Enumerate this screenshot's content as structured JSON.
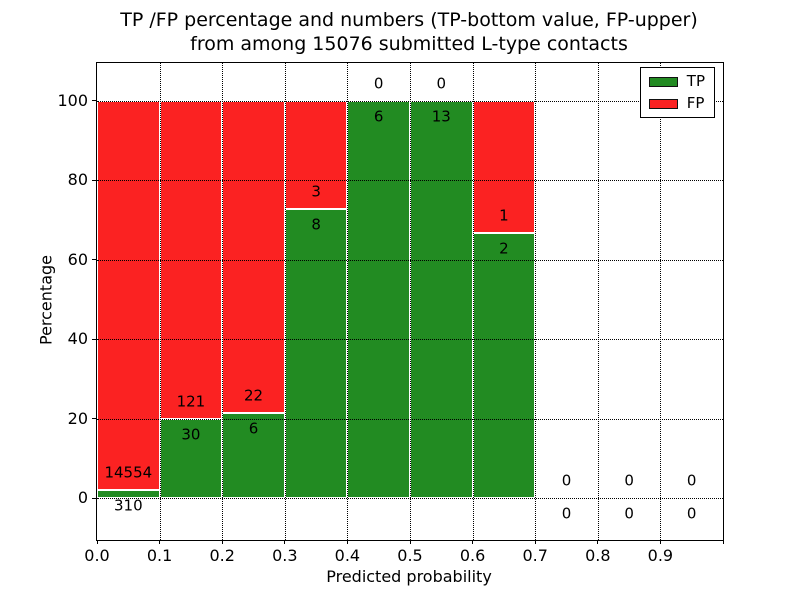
{
  "header": {
    "title_line1": "TP /FP percentage and numbers (TP-bottom value, FP-upper)",
    "title_line2": "from among 15076 submitted L-type contacts"
  },
  "chart_data": {
    "type": "bar",
    "variant": "stacked-100-percent-histogram",
    "title": "TP /FP percentage and numbers (TP-bottom value, FP-upper) from among 15076 submitted L-type contacts",
    "total_submitted_contacts": 15076,
    "xlabel": "Predicted probability",
    "ylabel": "Percentage",
    "xlim": [
      0.0,
      1.0
    ],
    "ylim": [
      -10.5,
      109.5
    ],
    "grid": "dotted black, drawn above bars",
    "annotation_note": "FP count printed just above the TP/FP boundary, TP count just below it",
    "x_ticks": {
      "values": [
        0.0,
        0.1,
        0.2,
        0.3,
        0.4,
        0.5,
        0.6,
        0.7,
        0.8,
        0.9
      ],
      "labels": [
        "0.0",
        "0.1",
        "0.2",
        "0.3",
        "0.4",
        "0.5",
        "0.6",
        "0.7",
        "0.8",
        "0.9"
      ]
    },
    "x_tick_marks": [
      0.0,
      0.1,
      0.2,
      0.3,
      0.4,
      0.5,
      0.6,
      0.7,
      0.8,
      0.9,
      1.0
    ],
    "y_ticks": {
      "values": [
        0,
        20,
        40,
        60,
        80,
        100
      ],
      "labels": [
        "0",
        "20",
        "40",
        "60",
        "80",
        "100"
      ]
    },
    "bin_width": 0.1,
    "bins": [
      {
        "x_start": 0.0,
        "x_end": 0.1,
        "tp": 310,
        "fp": 14554
      },
      {
        "x_start": 0.1,
        "x_end": 0.2,
        "tp": 30,
        "fp": 121
      },
      {
        "x_start": 0.2,
        "x_end": 0.3,
        "tp": 6,
        "fp": 22
      },
      {
        "x_start": 0.3,
        "x_end": 0.4,
        "tp": 8,
        "fp": 3
      },
      {
        "x_start": 0.4,
        "x_end": 0.5,
        "tp": 6,
        "fp": 0
      },
      {
        "x_start": 0.5,
        "x_end": 0.6,
        "tp": 13,
        "fp": 0
      },
      {
        "x_start": 0.6,
        "x_end": 0.7,
        "tp": 2,
        "fp": 1
      },
      {
        "x_start": 0.7,
        "x_end": 0.8,
        "tp": 0,
        "fp": 0
      },
      {
        "x_start": 0.8,
        "x_end": 0.9,
        "tp": 0,
        "fp": 0
      },
      {
        "x_start": 0.9,
        "x_end": 1.0,
        "tp": 0,
        "fp": 0
      }
    ],
    "legend": {
      "position": "upper right",
      "entries": [
        {
          "label": "TP",
          "color": "#228b22"
        },
        {
          "label": "FP",
          "color": "#fb2222"
        }
      ]
    },
    "colors": {
      "tp_fill": "#228b22",
      "fp_fill": "#fb2222",
      "bar_edge": "#ffffff",
      "grid": "#000000",
      "text": "#000000",
      "background": "#ffffff"
    }
  }
}
